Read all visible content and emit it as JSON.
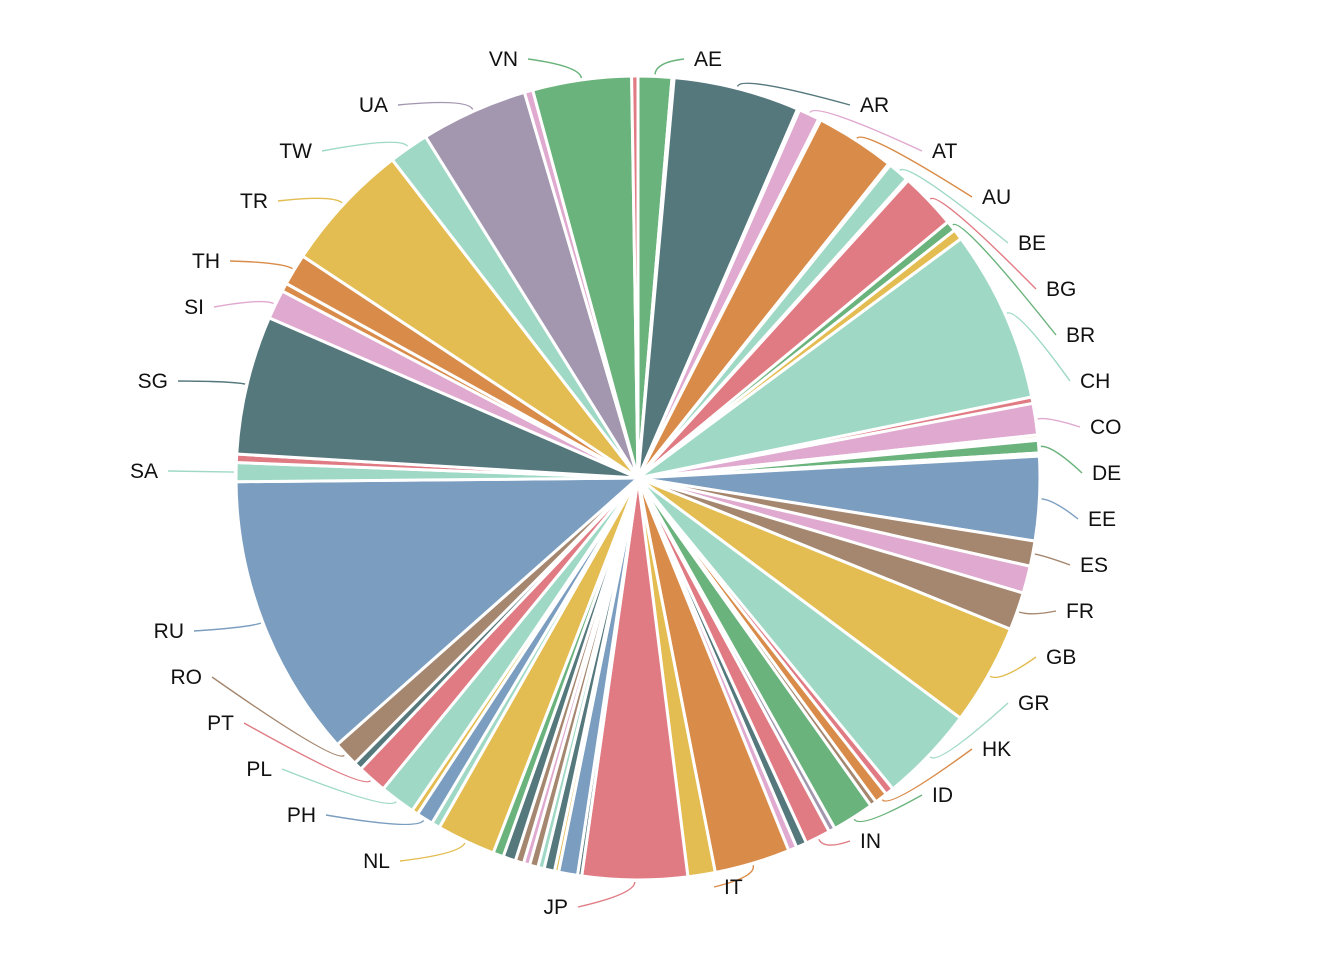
{
  "chart_data": {
    "type": "pie",
    "title": "",
    "legend": "none",
    "slices": [
      {
        "label": "AE",
        "value": 1.6,
        "color": "#6bb37c"
      },
      {
        "label": "",
        "value": 0.1,
        "color": "#a397b0"
      },
      {
        "label": "AR",
        "value": 6.0,
        "color": "#55787d"
      },
      {
        "label": "",
        "value": 0.1,
        "color": "#e0a9cf"
      },
      {
        "label": "AT",
        "value": 1.0,
        "color": "#e0a9cf"
      },
      {
        "label": "",
        "value": 0.1,
        "color": "#a397b0"
      },
      {
        "label": "AU",
        "value": 3.8,
        "color": "#d98c4a"
      },
      {
        "label": "",
        "value": 0.1,
        "color": "#6bb37c"
      },
      {
        "label": "BE",
        "value": 1.0,
        "color": "#9fd9c6"
      },
      {
        "label": "",
        "value": 0.1,
        "color": "#6bb37c"
      },
      {
        "label": "BG",
        "value": 2.7,
        "color": "#e07b84"
      },
      {
        "label": "BR",
        "value": 0.5,
        "color": "#6bb37c"
      },
      {
        "label": "",
        "value": 0.5,
        "color": "#e3bd52"
      },
      {
        "label": "CH",
        "value": 8.2,
        "color": "#9fd9c6"
      },
      {
        "label": "",
        "value": 0.3,
        "color": "#e07b84"
      },
      {
        "label": "CO",
        "value": 1.5,
        "color": "#e0a9cf"
      },
      {
        "label": "",
        "value": 0.15,
        "color": "#e3bd52"
      },
      {
        "label": "",
        "value": 0.1,
        "color": "#a397b0"
      },
      {
        "label": "DE",
        "value": 0.6,
        "color": "#6bb37c"
      },
      {
        "label": "",
        "value": 0.15,
        "color": "#9fd9c6"
      },
      {
        "label": "EE",
        "value": 4.0,
        "color": "#7b9ec0"
      },
      {
        "label": "ES",
        "value": 1.2,
        "color": "#a5876f"
      },
      {
        "label": "",
        "value": 1.3,
        "color": "#e0a9cf"
      },
      {
        "label": "FR",
        "value": 1.8,
        "color": "#a5876f"
      },
      {
        "label": "GB",
        "value": 4.8,
        "color": "#e3bd52"
      },
      {
        "label": "GR",
        "value": 4.6,
        "color": "#9fd9c6"
      },
      {
        "label": "",
        "value": 0.4,
        "color": "#e07b84"
      },
      {
        "label": "HK",
        "value": 0.6,
        "color": "#d98c4a"
      },
      {
        "label": "",
        "value": 0.3,
        "color": "#a5876f"
      },
      {
        "label": "ID",
        "value": 2.0,
        "color": "#6bb37c"
      },
      {
        "label": "",
        "value": 0.3,
        "color": "#a397b0"
      },
      {
        "label": "IN",
        "value": 1.2,
        "color": "#e07b84"
      },
      {
        "label": "",
        "value": 0.5,
        "color": "#55787d"
      },
      {
        "label": "",
        "value": 0.4,
        "color": "#e0a9cf"
      },
      {
        "label": "IT",
        "value": 3.6,
        "color": "#d98c4a"
      },
      {
        "label": "",
        "value": 1.3,
        "color": "#e3bd52"
      },
      {
        "label": "JP",
        "value": 5.0,
        "color": "#e07b84"
      },
      {
        "label": "",
        "value": 0.2,
        "color": "#55787d"
      },
      {
        "label": "",
        "value": 0.9,
        "color": "#7b9ec0"
      },
      {
        "label": "",
        "value": 0.2,
        "color": "#e3bd52"
      },
      {
        "label": "",
        "value": 0.5,
        "color": "#55787d"
      },
      {
        "label": "",
        "value": 0.3,
        "color": "#9fd9c6"
      },
      {
        "label": "",
        "value": 0.4,
        "color": "#a5876f"
      },
      {
        "label": "",
        "value": 0.3,
        "color": "#e0a9cf"
      },
      {
        "label": "",
        "value": 0.4,
        "color": "#a5876f"
      },
      {
        "label": "",
        "value": 0.6,
        "color": "#55787d"
      },
      {
        "label": "",
        "value": 0.5,
        "color": "#6bb37c"
      },
      {
        "label": "NL",
        "value": 2.8,
        "color": "#e3bd52"
      },
      {
        "label": "",
        "value": 0.4,
        "color": "#9fd9c6"
      },
      {
        "label": "PH",
        "value": 0.8,
        "color": "#7b9ec0"
      },
      {
        "label": "",
        "value": 0.3,
        "color": "#e3bd52"
      },
      {
        "label": "PL",
        "value": 1.7,
        "color": "#9fd9c6"
      },
      {
        "label": "PT",
        "value": 1.4,
        "color": "#e07b84"
      },
      {
        "label": "",
        "value": 0.4,
        "color": "#55787d"
      },
      {
        "label": "RO",
        "value": 1.2,
        "color": "#a5876f"
      },
      {
        "label": "RU",
        "value": 13.5,
        "color": "#7b9ec0"
      },
      {
        "label": "SA",
        "value": 0.9,
        "color": "#9fd9c6"
      },
      {
        "label": "",
        "value": 0.4,
        "color": "#e07b84"
      },
      {
        "label": "SG",
        "value": 6.6,
        "color": "#55787d"
      },
      {
        "label": "SI",
        "value": 1.4,
        "color": "#e0a9cf"
      },
      {
        "label": "",
        "value": 0.4,
        "color": "#d98c4a"
      },
      {
        "label": "TH",
        "value": 1.5,
        "color": "#d98c4a"
      },
      {
        "label": "TR",
        "value": 6.2,
        "color": "#e3bd52"
      },
      {
        "label": "TW",
        "value": 1.9,
        "color": "#9fd9c6"
      },
      {
        "label": "UA",
        "value": 5.1,
        "color": "#a397b0"
      },
      {
        "label": "",
        "value": 0.4,
        "color": "#e0a9cf"
      },
      {
        "label": "VN",
        "value": 4.7,
        "color": "#6bb37c"
      },
      {
        "label": "",
        "value": 0.3,
        "color": "#e07b84"
      }
    ]
  }
}
